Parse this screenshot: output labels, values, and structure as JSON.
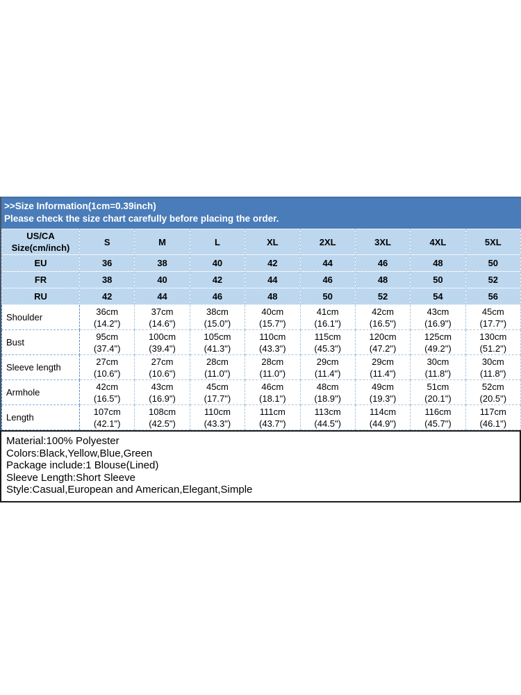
{
  "banner": {
    "line1": ">>Size Information(1cm=0.39inch)",
    "line2": "Please check the size chart carefully before placing the order."
  },
  "size_table": {
    "corner_line1": "US/CA",
    "corner_line2": "Size(cm/inch)",
    "columns": [
      "S",
      "M",
      "L",
      "XL",
      "2XL",
      "3XL",
      "4XL",
      "5XL"
    ],
    "region_rows": [
      {
        "label": "EU",
        "values": [
          "36",
          "38",
          "40",
          "42",
          "44",
          "46",
          "48",
          "50"
        ]
      },
      {
        "label": "FR",
        "values": [
          "38",
          "40",
          "42",
          "44",
          "46",
          "48",
          "50",
          "52"
        ]
      },
      {
        "label": "RU",
        "values": [
          "42",
          "44",
          "46",
          "48",
          "50",
          "52",
          "54",
          "56"
        ]
      }
    ],
    "measure_rows": [
      {
        "label": "Shoulder",
        "cm": [
          "36cm",
          "37cm",
          "38cm",
          "40cm",
          "41cm",
          "42cm",
          "43cm",
          "45cm"
        ],
        "inch": [
          "(14.2\")",
          "(14.6\")",
          "(15.0\")",
          "(15.7\")",
          "(16.1\")",
          "(16.5\")",
          "(16.9\")",
          "(17.7\")"
        ]
      },
      {
        "label": "Bust",
        "cm": [
          "95cm",
          "100cm",
          "105cm",
          "110cm",
          "115cm",
          "120cm",
          "125cm",
          "130cm"
        ],
        "inch": [
          "(37.4\")",
          "(39.4\")",
          "(41.3\")",
          "(43.3\")",
          "(45.3\")",
          "(47.2\")",
          "(49.2\")",
          "(51.2\")"
        ]
      },
      {
        "label": "Sleeve length",
        "cm": [
          "27cm",
          "27cm",
          "28cm",
          "28cm",
          "29cm",
          "29cm",
          "30cm",
          "30cm"
        ],
        "inch": [
          "(10.6\")",
          "(10.6\")",
          "(11.0\")",
          "(11.0\")",
          "(11.4\")",
          "(11.4\")",
          "(11.8\")",
          "(11.8\")"
        ]
      },
      {
        "label": "Armhole",
        "cm": [
          "42cm",
          "43cm",
          "45cm",
          "46cm",
          "48cm",
          "49cm",
          "51cm",
          "52cm"
        ],
        "inch": [
          "(16.5\")",
          "(16.9\")",
          "(17.7\")",
          "(18.1\")",
          "(18.9\")",
          "(19.3\")",
          "(20.1\")",
          "(20.5\")"
        ]
      },
      {
        "label": "Length",
        "cm": [
          "107cm",
          "108cm",
          "110cm",
          "111cm",
          "113cm",
          "114cm",
          "116cm",
          "117cm"
        ],
        "inch": [
          "(42.1\")",
          "(42.5\")",
          "(43.3\")",
          "(43.7\")",
          "(44.5\")",
          "(44.9\")",
          "(45.7\")",
          "(46.1\")"
        ]
      }
    ]
  },
  "details": {
    "lines": [
      "Material:100% Polyester",
      "Colors:Black,Yellow,Blue,Green",
      "Package include:1 Blouse(Lined)",
      "Sleeve Length:Short Sleeve",
      "Style:Casual,European and American,Elegant,Simple"
    ]
  },
  "colors": {
    "banner_bg": "#4a7cb9",
    "header_bg": "#bdd7ee",
    "label_bg": "#5b9bd5",
    "banner_text": "#ffffff",
    "body_text": "#000000"
  }
}
